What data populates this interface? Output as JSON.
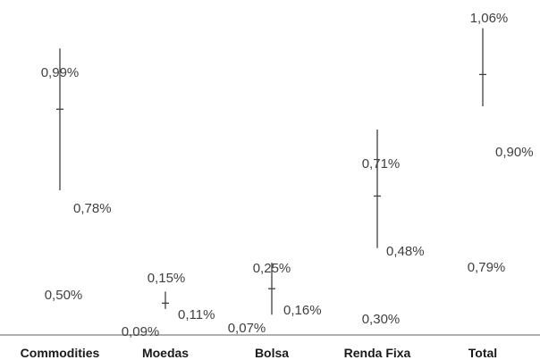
{
  "chart_data": {
    "type": "range",
    "categories": [
      "Commodities",
      "Moedas",
      "Bolsa",
      "Renda Fixa",
      "Total"
    ],
    "high": [
      0.99,
      0.15,
      0.25,
      0.71,
      1.06
    ],
    "mid": [
      0.78,
      0.11,
      0.16,
      0.48,
      0.9
    ],
    "low": [
      0.5,
      0.09,
      0.07,
      0.3,
      0.79
    ],
    "high_labels": [
      "0,99%",
      "0,15%",
      "0,25%",
      "0,71%",
      "1,06%"
    ],
    "mid_labels": [
      "0,78%",
      "0,11%",
      "0,16%",
      "0,48%",
      "0,90%"
    ],
    "low_labels": [
      "0,50%",
      "0,09%",
      "0,07%",
      "0,30%",
      "0,79%"
    ],
    "ylim": [
      0,
      1.1
    ],
    "grid": false,
    "legend": "none",
    "colors": {
      "line": "#404040",
      "text": "#404040",
      "category": "#1a1a1a",
      "axis": "#808080"
    }
  }
}
